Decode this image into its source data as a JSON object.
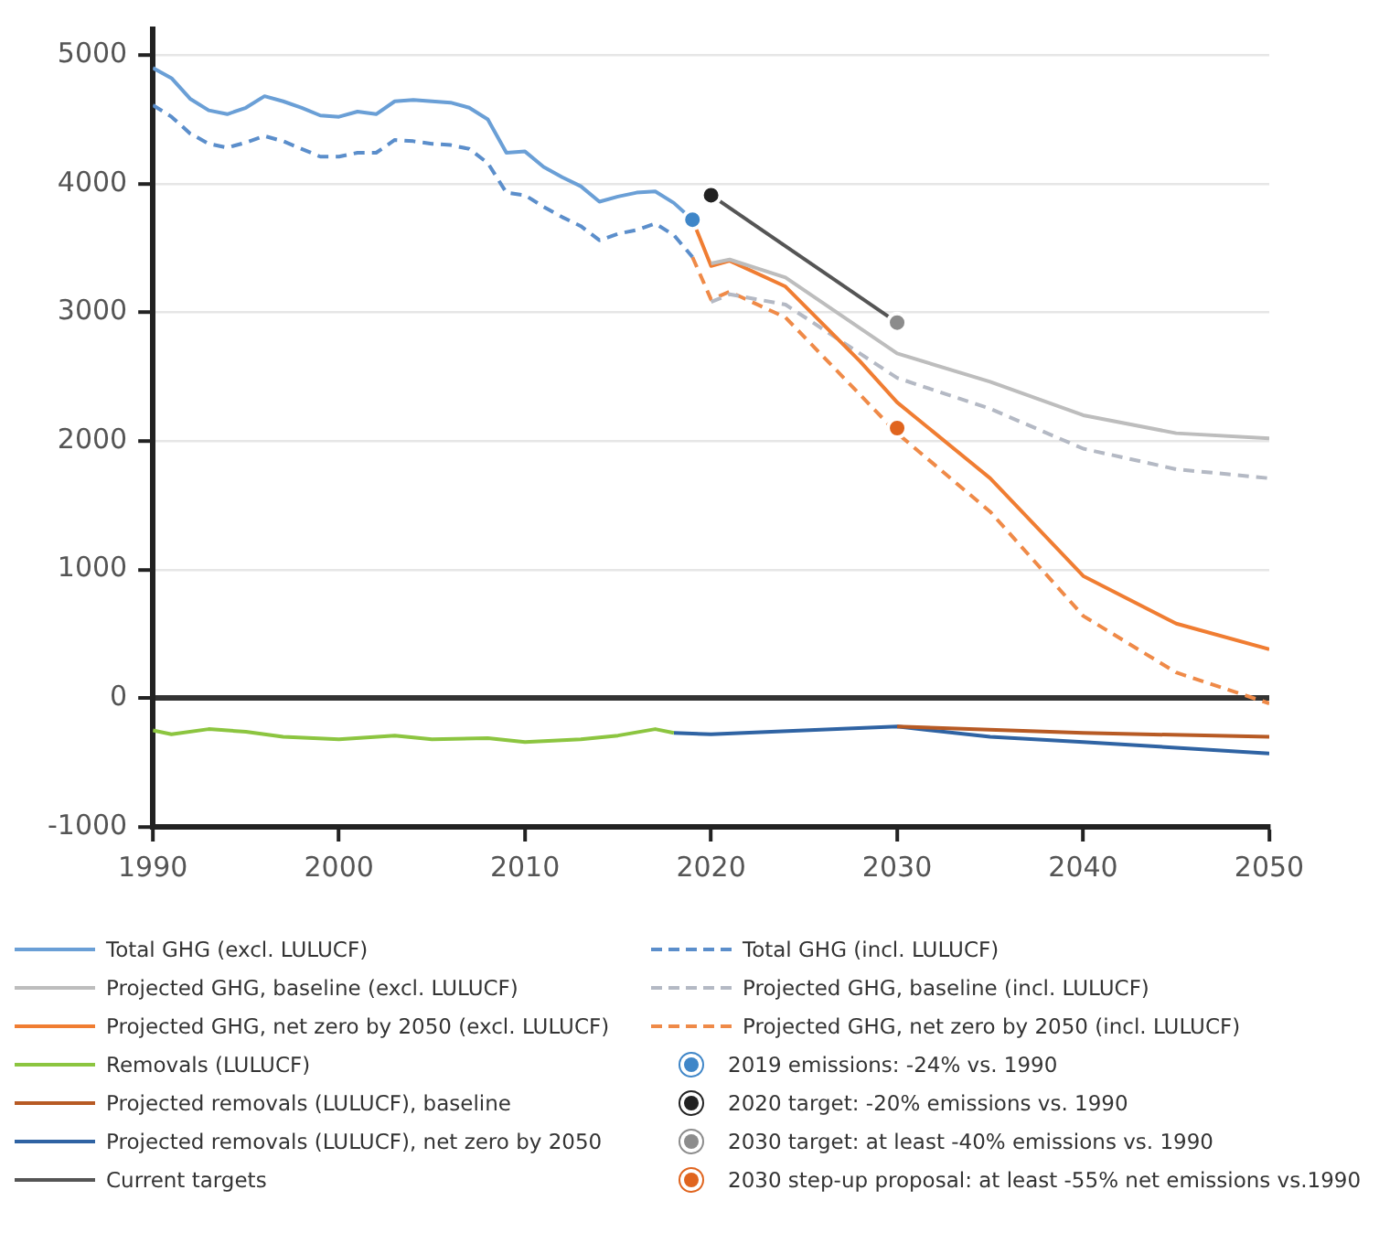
{
  "chart_data": {
    "type": "line",
    "xlim": [
      1990,
      2050
    ],
    "xticks": [
      1990,
      2000,
      2010,
      2020,
      2030,
      2040,
      2050
    ],
    "ylim": [
      -1000,
      5200
    ],
    "yticks": [
      -1000,
      0,
      1000,
      2000,
      3000,
      4000,
      5000
    ],
    "grid": "y",
    "legend": "bottom",
    "series": [
      {
        "name": "Total GHG (excl. LULUCF)",
        "color": "#6a9fd6",
        "line_style": "solid",
        "marker": "none",
        "x": [
          1990,
          1991,
          1992,
          1993,
          1994,
          1995,
          1996,
          1997,
          1998,
          1999,
          2000,
          2001,
          2002,
          2003,
          2004,
          2005,
          2006,
          2007,
          2008,
          2009,
          2010,
          2011,
          2012,
          2013,
          2014,
          2015,
          2016,
          2017,
          2018,
          2019
        ],
        "values": [
          4900,
          4820,
          4660,
          4570,
          4540,
          4590,
          4680,
          4640,
          4590,
          4530,
          4520,
          4560,
          4540,
          4640,
          4650,
          4640,
          4630,
          4590,
          4500,
          4240,
          4250,
          4130,
          4050,
          3980,
          3860,
          3900,
          3930,
          3940,
          3850,
          3720
        ]
      },
      {
        "name": "Projected GHG, baseline (excl. LULUCF)",
        "color": "#bdbdbd",
        "line_style": "solid",
        "marker": "none",
        "x": [
          2020,
          2021,
          2024,
          2030,
          2035,
          2040,
          2045,
          2050
        ],
        "values": [
          3380,
          3410,
          3270,
          2680,
          2460,
          2200,
          2060,
          2020
        ]
      },
      {
        "name": "Projected GHG, net zero by 2050 (excl. LULUCF)",
        "color": "#f07d32",
        "line_style": "solid",
        "marker": "none",
        "x": [
          2019,
          2020,
          2021,
          2024,
          2028,
          2030,
          2035,
          2040,
          2045,
          2050
        ],
        "values": [
          3720,
          3360,
          3400,
          3200,
          2620,
          2300,
          1710,
          950,
          580,
          380
        ]
      },
      {
        "name": "Removals (LULUCF)",
        "color": "#8cc540",
        "line_style": "solid",
        "marker": "none",
        "x": [
          1990,
          1991,
          1993,
          1995,
          1997,
          2000,
          2003,
          2005,
          2008,
          2010,
          2013,
          2015,
          2017,
          2018
        ],
        "values": [
          -250,
          -280,
          -240,
          -260,
          -300,
          -320,
          -290,
          -320,
          -310,
          -340,
          -320,
          -290,
          -240,
          -270
        ]
      },
      {
        "name": "Projected removals (LULUCF), baseline",
        "color": "#b75a24",
        "line_style": "solid",
        "marker": "none",
        "x": [
          2030,
          2040,
          2050
        ],
        "values": [
          -220,
          -270,
          -300
        ]
      },
      {
        "name": "Projected removals (LULUCF), net zero by 2050",
        "color": "#2f63a3",
        "line_style": "solid",
        "marker": "none",
        "x": [
          2018,
          2020,
          2030,
          2035,
          2040,
          2050
        ],
        "values": [
          -270,
          -280,
          -220,
          -300,
          -340,
          -430
        ]
      },
      {
        "name": "Current targets",
        "color": "#555555",
        "line_style": "solid",
        "marker": "none",
        "x": [
          2020,
          2030
        ],
        "values": [
          3910,
          2920
        ]
      },
      {
        "name": "Total GHG (incl. LULUCF)",
        "color": "#5b8ecb",
        "line_style": "dashed",
        "marker": "none",
        "x": [
          1990,
          1991,
          1992,
          1993,
          1994,
          1995,
          1996,
          1997,
          1998,
          1999,
          2000,
          2001,
          2002,
          2003,
          2004,
          2005,
          2006,
          2007,
          2008,
          2009,
          2010,
          2011,
          2012,
          2013,
          2014,
          2015,
          2016,
          2017,
          2018,
          2019
        ],
        "values": [
          4610,
          4520,
          4390,
          4310,
          4280,
          4320,
          4370,
          4330,
          4270,
          4210,
          4210,
          4240,
          4240,
          4340,
          4330,
          4310,
          4300,
          4270,
          4160,
          3930,
          3910,
          3820,
          3740,
          3670,
          3560,
          3610,
          3640,
          3690,
          3600,
          3430
        ]
      },
      {
        "name": "Projected GHG, baseline (incl. LULUCF)",
        "color": "#b4b9c4",
        "line_style": "dashed",
        "marker": "none",
        "x": [
          2020,
          2021,
          2024,
          2030,
          2035,
          2040,
          2045,
          2050
        ],
        "values": [
          3080,
          3140,
          3060,
          2490,
          2250,
          1940,
          1780,
          1710
        ]
      },
      {
        "name": "Projected GHG, net zero by 2050 (incl. LULUCF)",
        "color": "#ef8a48",
        "line_style": "dashed",
        "marker": "none",
        "x": [
          2019,
          2020,
          2021,
          2024,
          2030,
          2035,
          2040,
          2045,
          2050
        ],
        "values": [
          3430,
          3100,
          3160,
          2960,
          2060,
          1450,
          640,
          200,
          -40
        ]
      },
      {
        "name": "2019 emissions: -24% vs. 1990",
        "type": "scatter",
        "color": "#3f86c8",
        "marker": "circle",
        "x": [
          2019
        ],
        "values": [
          3720
        ]
      },
      {
        "name": "2020 target: -20% emissions vs. 1990",
        "type": "scatter",
        "color": "#222222",
        "marker": "circle",
        "x": [
          2020
        ],
        "values": [
          3910
        ]
      },
      {
        "name": "2030 target: at least -40% emissions vs. 1990",
        "type": "scatter",
        "color": "#8c8c8c",
        "marker": "circle",
        "x": [
          2030
        ],
        "values": [
          2920
        ]
      },
      {
        "name": "2030 step-up proposal: at least -55% net emissions vs.1990",
        "type": "scatter",
        "color": "#e0641e",
        "marker": "circle",
        "x": [
          2030
        ],
        "values": [
          2100
        ]
      }
    ]
  }
}
